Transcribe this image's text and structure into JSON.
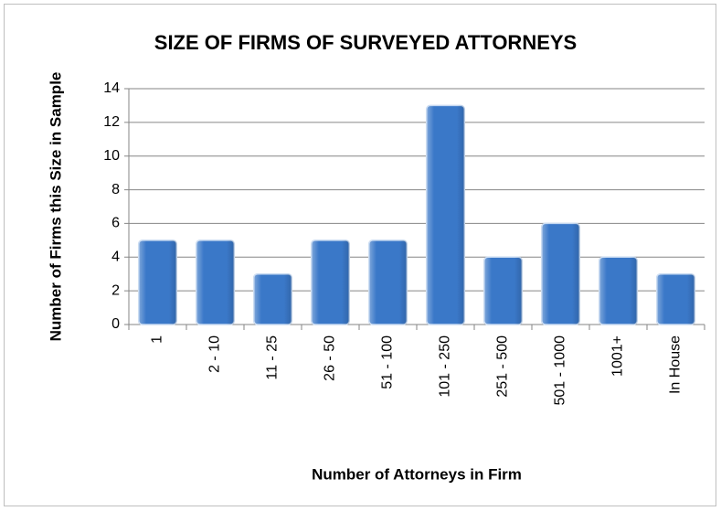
{
  "chart_data": {
    "type": "bar",
    "title": "SIZE OF FIRMS OF SURVEYED ATTORNEYS",
    "x_label": "Number of Attorneys in Firm",
    "y_label": "Number of Firms this Size in Sample",
    "categories": [
      "1",
      "2 - 10",
      "11 - 25",
      "26 - 50",
      "51 - 100",
      "101 - 250",
      "251 - 500",
      "501 - 1000",
      "1001+",
      "In House"
    ],
    "values": [
      5,
      5,
      3,
      5,
      5,
      13,
      4,
      6,
      4,
      3
    ],
    "color": "#3a78c8",
    "ylim": [
      0,
      14
    ],
    "yticks": [
      0,
      2,
      4,
      6,
      8,
      10,
      12,
      14
    ],
    "grid": true
  }
}
